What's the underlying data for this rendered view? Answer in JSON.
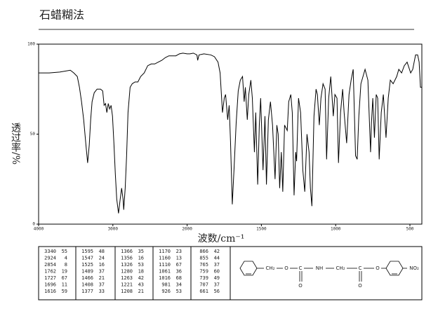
{
  "chart_data": {
    "type": "line",
    "title": "石蜡糊法",
    "x_label": "波数/cm⁻¹",
    "y_label": "透过率/%",
    "color": "#000000",
    "xlim": [
      4000,
      420
    ],
    "xticks": [
      4000,
      3000,
      2000,
      1500,
      1000,
      500
    ],
    "ylim": [
      0,
      100
    ],
    "yticks": [
      100,
      50,
      0
    ],
    "x": [
      4000,
      3858,
      3716,
      3573,
      3526,
      3479,
      3450,
      3422,
      3393,
      3365,
      3340,
      3318,
      3299,
      3280,
      3251,
      3213,
      3166,
      3137,
      3118,
      3099,
      3081,
      3062,
      3043,
      3024,
      3005,
      2986,
      2967,
      2948,
      2924,
      2901,
      2882,
      2863,
      2854,
      2834,
      2815,
      2796,
      2768,
      2739,
      2701,
      2663,
      2626,
      2578,
      2531,
      2483,
      2436,
      2389,
      2341,
      2294,
      2246,
      2152,
      2104,
      2057,
      2000,
      1981,
      1958,
      1934,
      1929,
      1920,
      1887,
      1840,
      1816,
      1792,
      1778,
      1762,
      1750,
      1741,
      1727,
      1717,
      1708,
      1696,
      1684,
      1670,
      1656,
      1642,
      1627,
      1616,
      1608,
      1595,
      1585,
      1571,
      1561,
      1547,
      1538,
      1525,
      1514,
      1505,
      1489,
      1476,
      1466,
      1453,
      1439,
      1425,
      1408,
      1396,
      1387,
      1377,
      1366,
      1356,
      1344,
      1326,
      1316,
      1302,
      1292,
      1280,
      1269,
      1263,
      1250,
      1236,
      1221,
      1208,
      1193,
      1179,
      1170,
      1160,
      1146,
      1132,
      1123,
      1110,
      1099,
      1085,
      1071,
      1061,
      1047,
      1033,
      1016,
      1005,
      991,
      981,
      967,
      953,
      943,
      926,
      910,
      896,
      882,
      866,
      855,
      844,
      830,
      816,
      802,
      783,
      765,
      759,
      750,
      739,
      727,
      717,
      707,
      693,
      679,
      661,
      646,
      632,
      613,
      589,
      575,
      556,
      538,
      519,
      495,
      481,
      462,
      448,
      438,
      429,
      420
    ],
    "values": [
      84,
      84,
      84.5,
      85.5,
      84,
      82,
      76,
      68,
      58,
      45,
      34,
      44,
      58,
      68,
      73,
      75,
      75,
      74,
      66,
      67,
      62,
      67,
      64,
      66,
      60,
      45,
      28,
      14,
      6,
      14,
      20,
      14,
      8,
      20,
      38,
      62,
      76,
      78,
      79,
      79,
      82,
      84,
      88,
      89,
      89,
      90,
      91,
      92.5,
      93.5,
      93.5,
      94.6,
      95,
      94.6,
      94.6,
      95,
      94,
      91,
      94,
      94.6,
      94,
      93,
      90,
      84,
      62,
      70,
      72,
      58,
      66,
      46,
      11,
      31,
      56,
      74,
      80,
      82,
      68,
      76,
      58,
      72,
      80,
      70,
      40,
      62,
      22,
      55,
      70,
      30,
      60,
      22,
      58,
      68,
      55,
      25,
      55,
      50,
      20,
      40,
      18,
      55,
      52,
      68,
      72,
      62,
      16,
      40,
      35,
      70,
      62,
      30,
      18,
      50,
      40,
      20,
      10,
      60,
      75,
      72,
      55,
      70,
      78,
      75,
      36,
      70,
      82,
      60,
      72,
      70,
      34,
      62,
      75,
      62,
      45,
      72,
      80,
      86,
      38,
      36,
      60,
      78,
      82,
      86,
      80,
      40,
      56,
      70,
      48,
      72,
      70,
      36,
      62,
      72,
      48,
      70,
      80,
      78,
      82,
      86,
      84,
      88,
      90,
      84,
      86,
      94,
      94,
      90,
      76,
      76
    ],
    "peak_table": [
      [
        [
          3340,
          55
        ],
        [
          2924,
          4
        ],
        [
          2854,
          8
        ],
        [
          1762,
          19
        ],
        [
          1727,
          67
        ],
        [
          1696,
          11
        ],
        [
          1616,
          59
        ]
      ],
      [
        [
          1595,
          48
        ],
        [
          1547,
          24
        ],
        [
          1525,
          16
        ],
        [
          1489,
          37
        ],
        [
          1466,
          21
        ],
        [
          1408,
          37
        ],
        [
          1377,
          33
        ]
      ],
      [
        [
          1366,
          35
        ],
        [
          1356,
          16
        ],
        [
          1326,
          53
        ],
        [
          1280,
          18
        ],
        [
          1263,
          42
        ],
        [
          1221,
          43
        ],
        [
          1208,
          21
        ]
      ],
      [
        [
          1170,
          23
        ],
        [
          1160,
          13
        ],
        [
          1110,
          67
        ],
        [
          1061,
          36
        ],
        [
          1016,
          68
        ],
        [
          981,
          34
        ],
        [
          926,
          53
        ]
      ],
      [
        [
          866,
          42
        ],
        [
          855,
          44
        ],
        [
          765,
          37
        ],
        [
          759,
          60
        ],
        [
          739,
          49
        ],
        [
          707,
          37
        ],
        [
          661,
          56
        ]
      ]
    ],
    "structure_labels": [
      "CH₂",
      "O",
      "C",
      "O",
      "NH",
      "CH₂",
      "C",
      "O",
      "O",
      "NO₂"
    ]
  }
}
